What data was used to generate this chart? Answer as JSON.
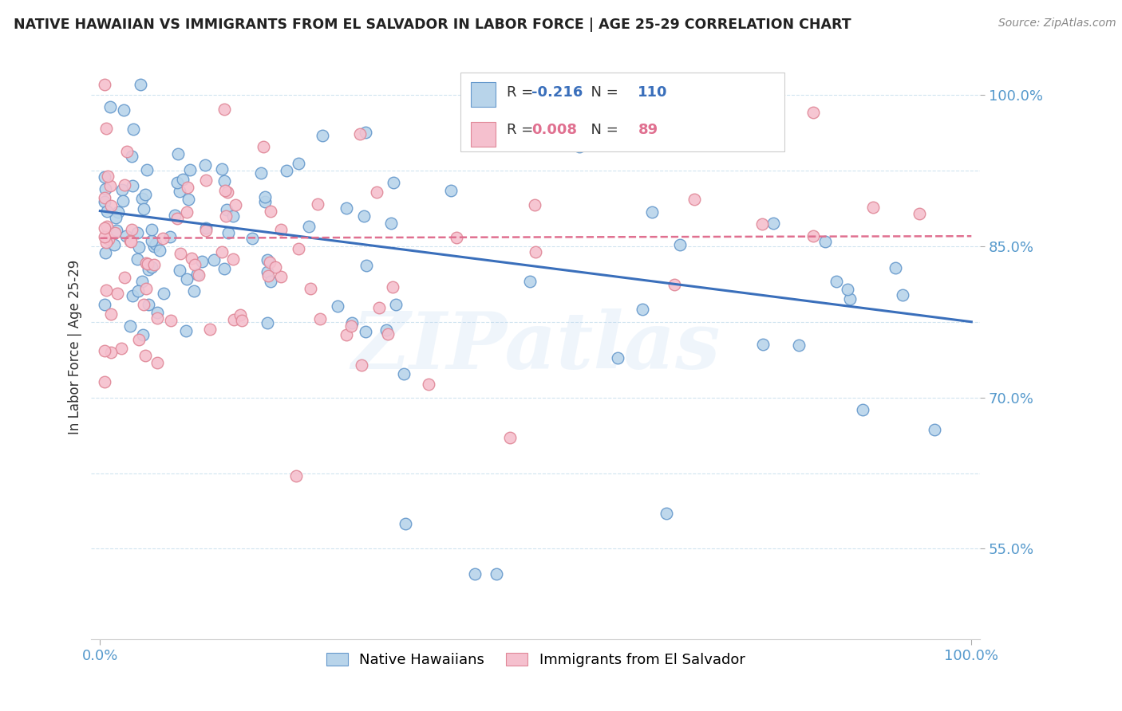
{
  "title": "NATIVE HAWAIIAN VS IMMIGRANTS FROM EL SALVADOR IN LABOR FORCE | AGE 25-29 CORRELATION CHART",
  "source": "Source: ZipAtlas.com",
  "ylabel": "In Labor Force | Age 25-29",
  "ymin": 0.46,
  "ymax": 1.04,
  "xmin": -0.01,
  "xmax": 1.01,
  "blue_R": -0.216,
  "blue_N": 110,
  "pink_R": 0.008,
  "pink_N": 89,
  "blue_color": "#b8d4ea",
  "blue_edge": "#6699cc",
  "pink_color": "#f5c0ce",
  "pink_edge": "#e08898",
  "blue_line_color": "#3a6fbb",
  "pink_line_color": "#e07090",
  "legend_label_blue": "Native Hawaiians",
  "legend_label_pink": "Immigrants from El Salvador",
  "watermark_text": "ZIPatlas",
  "grid_color": "#d0e4f0",
  "ytick_label_color": "#5599cc",
  "title_color": "#222222",
  "source_color": "#888888",
  "ytick_positions": [
    0.55,
    0.7,
    0.85,
    1.0
  ],
  "ytick_labels": [
    "55.0%",
    "70.0%",
    "85.0%",
    "100.0%"
  ],
  "grid_yticks": [
    0.55,
    0.625,
    0.7,
    0.775,
    0.85,
    0.925,
    1.0
  ],
  "blue_line_x0": 0.0,
  "blue_line_x1": 1.0,
  "blue_line_y0": 0.885,
  "blue_line_y1": 0.775,
  "pink_line_x0": 0.0,
  "pink_line_x1": 1.0,
  "pink_line_y0": 0.858,
  "pink_line_y1": 0.86
}
